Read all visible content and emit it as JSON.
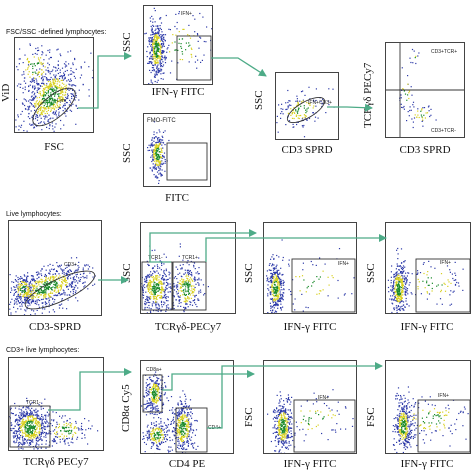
{
  "rows": [
    {
      "heading": "FSC/SSC -defined lymphocytes:",
      "plots": [
        {
          "id": "r1p1",
          "x_label": "FSC",
          "y_label": "ViD",
          "gates": [
            {
              "label": "Lym"
            }
          ]
        },
        {
          "id": "r1p2",
          "x_label": "IFN-γ FITC",
          "y_label": "SSC",
          "gates": [
            {
              "label": "IFN+"
            }
          ]
        },
        {
          "id": "r1p3",
          "x_label": "FITC",
          "y_label": "SSC",
          "title": "FMO-FITC",
          "gates": []
        },
        {
          "id": "r1p4",
          "x_label": "CD3 SPRD",
          "y_label": "SSC",
          "gates": [
            {
              "label": "IFN+CD3+"
            }
          ]
        },
        {
          "id": "r1p5",
          "x_label": "CD3 SPRD",
          "y_label": "TCRγδ PECy7",
          "gates": [
            {
              "label": "CD3+TCR+"
            },
            {
              "label": "CD3+TCR-"
            }
          ]
        }
      ]
    },
    {
      "heading": "Live lymphocytes:",
      "plots": [
        {
          "id": "r2p1",
          "x_label": "CD3-SPRD",
          "y_label": "",
          "gates": [
            {
              "label": "CD3+"
            }
          ]
        },
        {
          "id": "r2p2",
          "x_label": "TCRγδ-PECy7",
          "y_label": "SSC",
          "gates": [
            {
              "label": "TCR1-"
            },
            {
              "label": "TCR1+"
            }
          ]
        },
        {
          "id": "r2p3",
          "x_label": "IFN-γ FITC",
          "y_label": "SSC",
          "gates": [
            {
              "label": "IFN+"
            }
          ]
        },
        {
          "id": "r2p4",
          "x_label": "IFN-γ FITC",
          "y_label": "SSC",
          "gates": [
            {
              "label": "IFN+"
            }
          ]
        }
      ]
    },
    {
      "heading": "CD3+ live lymphocytes:",
      "plots": [
        {
          "id": "r3p1",
          "x_label": "TCRγδ PECy7",
          "y_label": "",
          "gates": [
            {
              "label": "TCR1-"
            }
          ]
        },
        {
          "id": "r3p2",
          "x_label": "CD4 PE",
          "y_label": "CD8α Cy5",
          "gates": [
            {
              "label": "CD8a+"
            },
            {
              "label": "CD4+"
            }
          ]
        },
        {
          "id": "r3p3",
          "x_label": "IFN-γ FITC",
          "y_label": "FSC",
          "gates": [
            {
              "label": "IFN+"
            }
          ]
        },
        {
          "id": "r3p4",
          "x_label": "IFN-γ FITC",
          "y_label": "FSC",
          "gates": [
            {
              "label": "IFN+"
            }
          ]
        }
      ]
    }
  ],
  "colors": {
    "arrow": "#4dab87",
    "axis": "#444444",
    "gate": "#333333",
    "dense": "#1a8a2a",
    "mid": "#d8d020",
    "sparse": "#2d3aa8"
  }
}
